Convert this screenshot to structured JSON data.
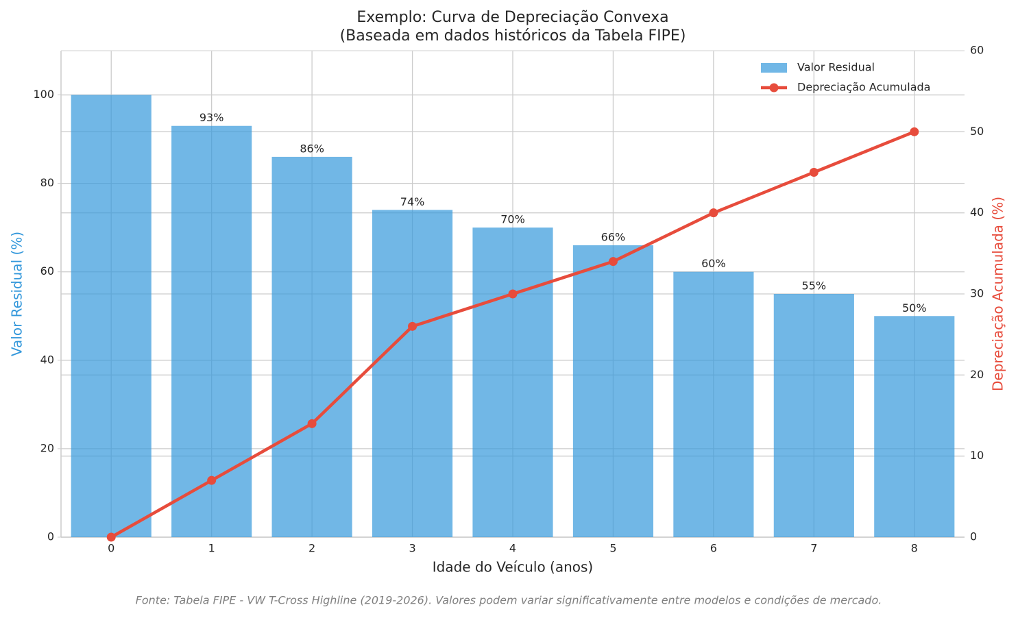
{
  "chart_data": {
    "type": "bar",
    "title": "Exemplo: Curva de Depreciação Convexa",
    "subtitle": "(Baseada em dados históricos da Tabela FIPE)",
    "xlabel": "Idade do Veículo (anos)",
    "ylabel": "Valor Residual (%)",
    "y2label": "Depreciação Acumulada (%)",
    "x": [
      0,
      1,
      2,
      3,
      4,
      5,
      6,
      7,
      8
    ],
    "xlim": [
      -0.5,
      8.5
    ],
    "xticks": [
      0,
      1,
      2,
      3,
      4,
      5,
      6,
      7,
      8
    ],
    "ylim": [
      0,
      110
    ],
    "yticks": [
      0,
      20,
      40,
      60,
      80,
      100
    ],
    "y2lim": [
      0,
      60
    ],
    "y2ticks": [
      0,
      10,
      20,
      30,
      40,
      50,
      60
    ],
    "grid": true,
    "legend": "upper right",
    "series": [
      {
        "name": "Valor Residual",
        "type": "bar",
        "color": "#3498db",
        "values": [
          100,
          93,
          86,
          74,
          70,
          66,
          60,
          55,
          50
        ],
        "value_labels": [
          null,
          "93%",
          "86%",
          "74%",
          "70%",
          "66%",
          "60%",
          "55%",
          "50%"
        ]
      },
      {
        "name": "Depreciação Acumulada",
        "type": "line",
        "axis": "y2",
        "color": "#e74c3c",
        "values": [
          0,
          7,
          14,
          26,
          30,
          34,
          40,
          45,
          50
        ]
      }
    ],
    "footnote": "Fonte: Tabela FIPE - VW T-Cross Highline (2019-2026). Valores podem variar significativamente entre modelos e condições de mercado."
  }
}
